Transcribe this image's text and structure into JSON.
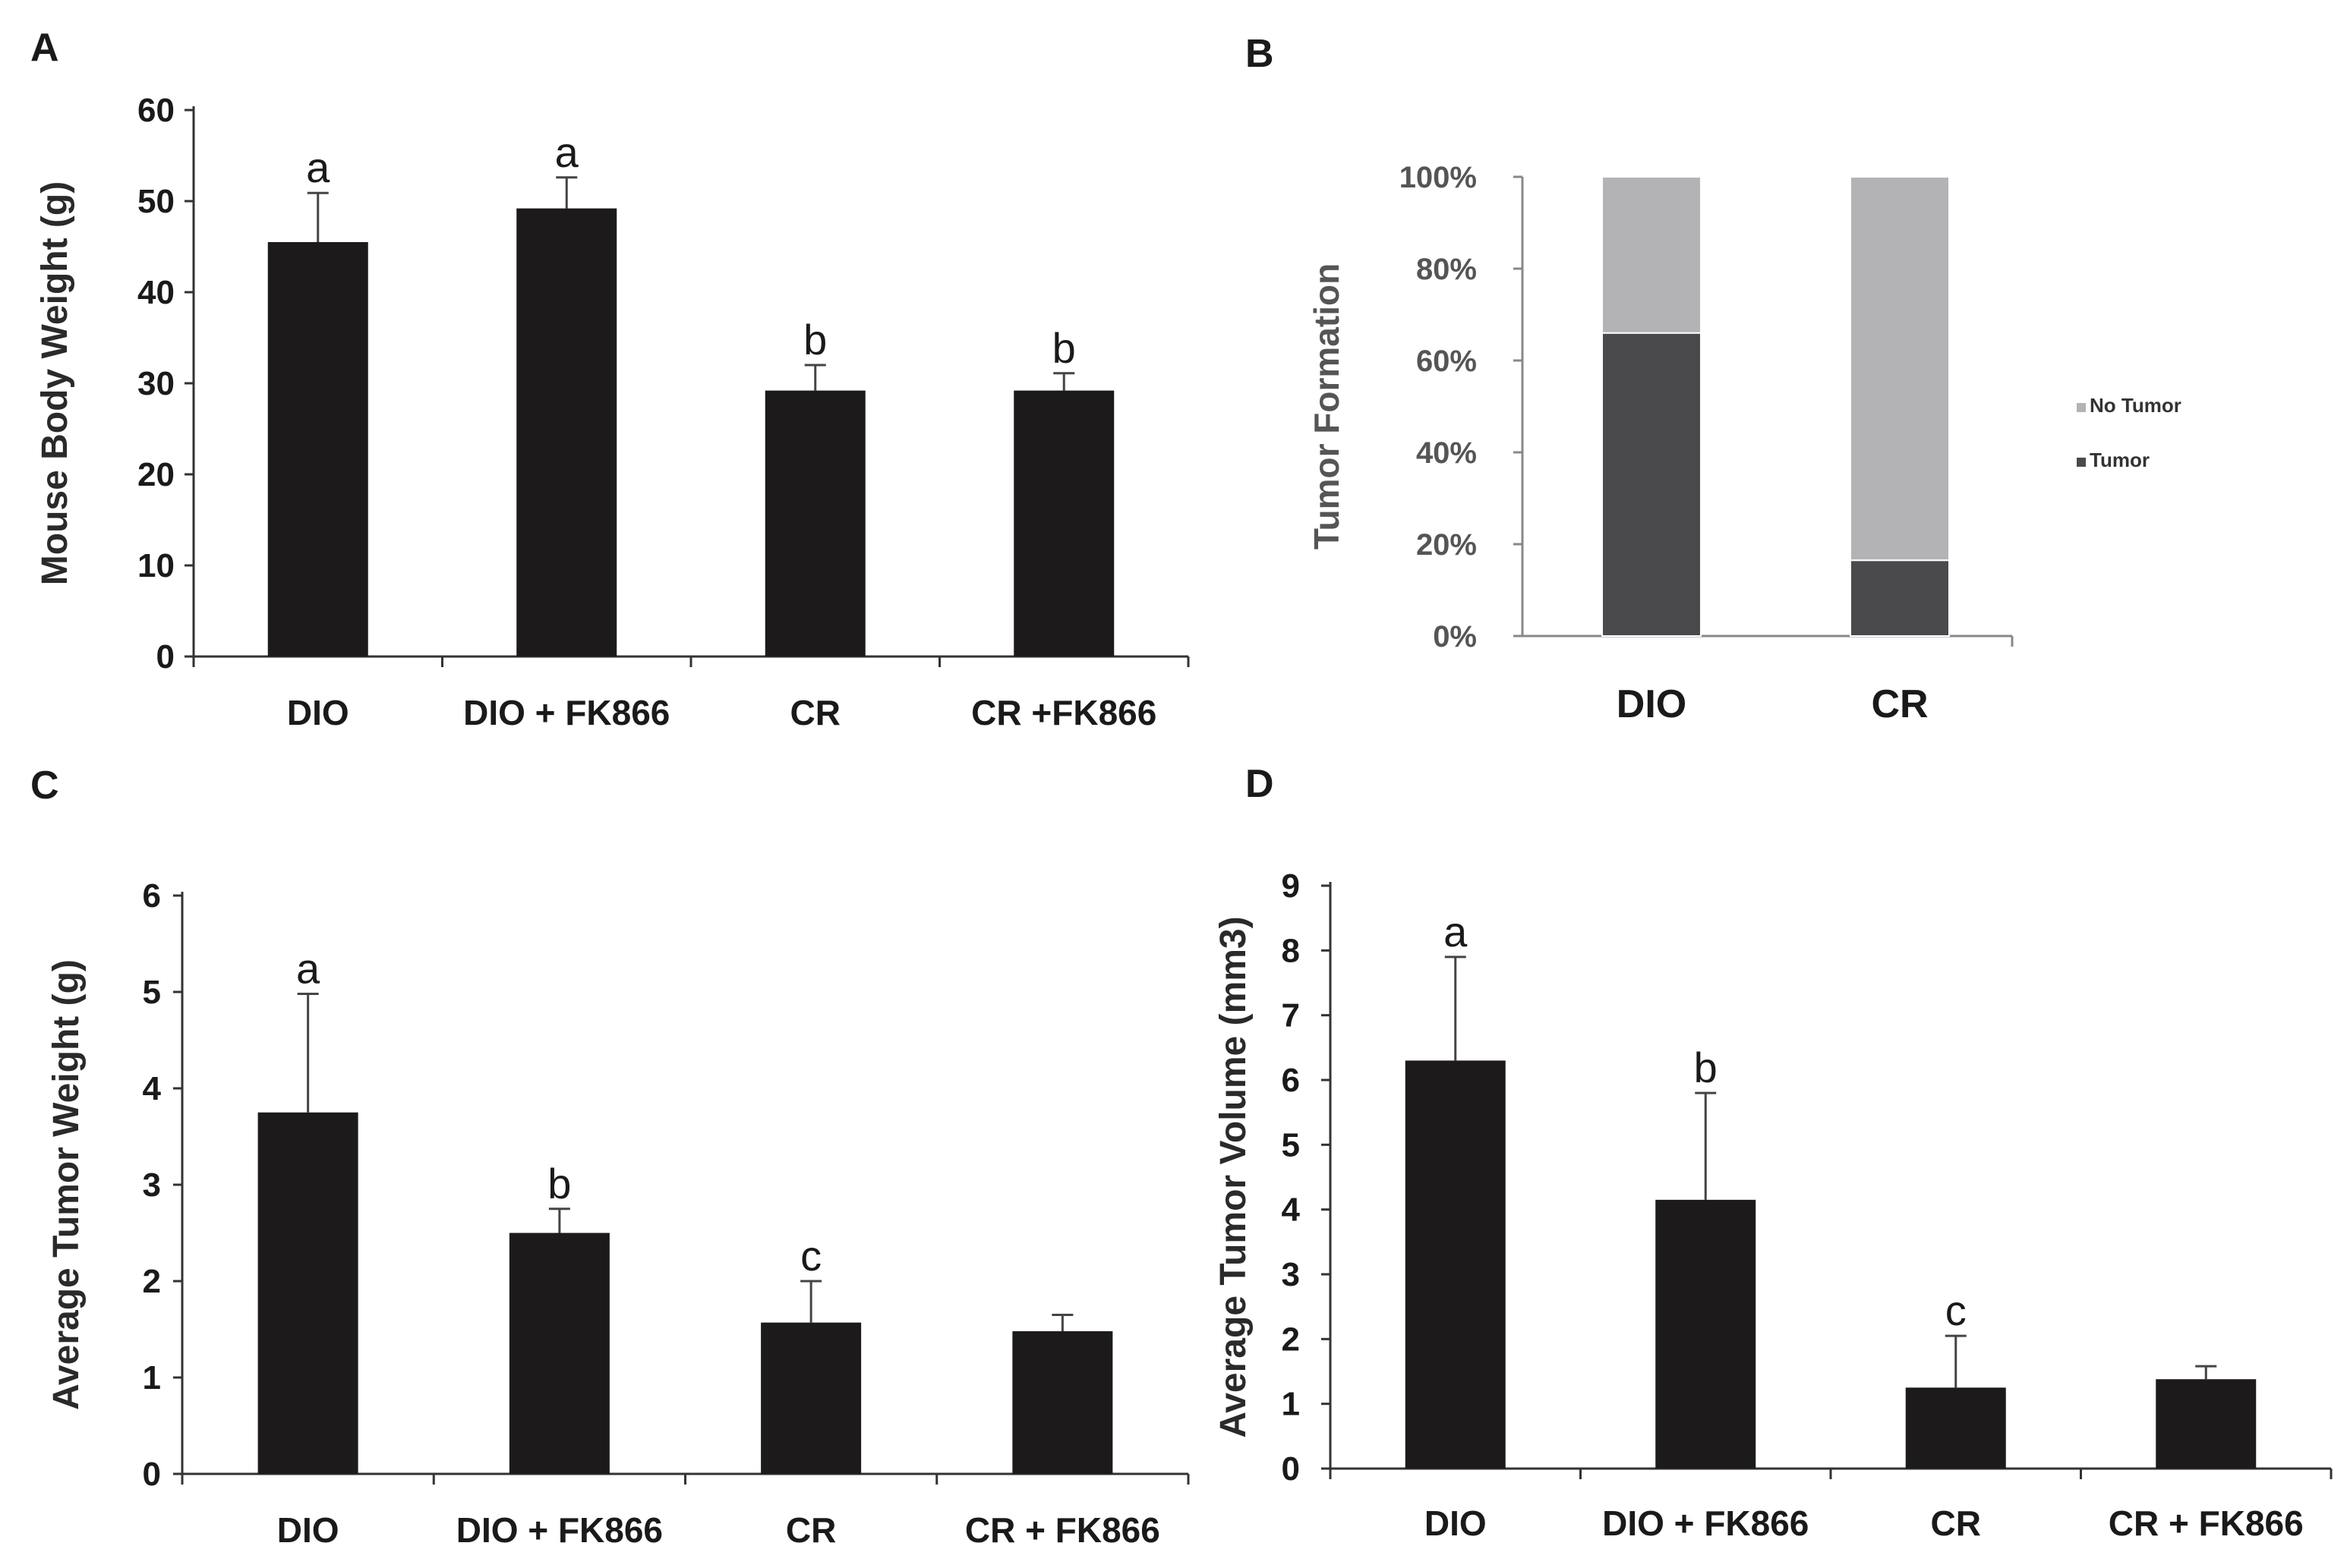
{
  "chart_data": [
    {
      "panel": "A",
      "type": "bar",
      "categories": [
        "DIO",
        "DIO + FK866",
        "CR",
        "CR +FK866"
      ],
      "values": [
        45.5,
        49.2,
        29.2,
        29.2
      ],
      "errors": [
        5.4,
        3.4,
        2.8,
        1.9
      ],
      "significance": [
        "a",
        "a",
        "b",
        "b"
      ],
      "ylabel": "Mouse Body Weight (g)",
      "ylim": [
        0,
        60
      ],
      "yticks": [
        "0",
        "10",
        "20",
        "30",
        "40",
        "50",
        "60"
      ],
      "bar_color": "#1c1a1b"
    },
    {
      "panel": "B",
      "type": "bar",
      "stacked": true,
      "categories": [
        "DIO",
        "CR"
      ],
      "series": [
        {
          "name": "Tumor",
          "values": [
            66,
            16.5
          ],
          "color": "#4a4a4c"
        },
        {
          "name": "No Tumor",
          "values": [
            34,
            83.5
          ],
          "color": "#b3b3b5"
        }
      ],
      "ylabel": "Tumor Formation",
      "ylim": [
        0,
        100
      ],
      "yticks": [
        "0%",
        "20%",
        "40%",
        "60%",
        "80%",
        "100%"
      ],
      "legend": [
        "No Tumor",
        "Tumor"
      ]
    },
    {
      "panel": "C",
      "type": "bar",
      "categories": [
        "DIO",
        "DIO + FK866",
        "CR",
        "CR + FK866"
      ],
      "values": [
        3.75,
        2.5,
        1.57,
        1.48
      ],
      "errors": [
        1.23,
        0.25,
        0.43,
        0.17
      ],
      "significance": [
        "a",
        "b",
        "c",
        ""
      ],
      "ylabel": "Average Tumor Weight (g)",
      "ylim": [
        0,
        6
      ],
      "yticks": [
        "0",
        "1",
        "2",
        "3",
        "4",
        "5",
        "6"
      ],
      "bar_color": "#1c1a1b"
    },
    {
      "panel": "D",
      "type": "bar",
      "categories": [
        "DIO",
        "DIO + FK866",
        "CR",
        "CR + FK866"
      ],
      "values": [
        6.3,
        4.15,
        1.25,
        1.38
      ],
      "errors": [
        1.6,
        1.65,
        0.8,
        0.2
      ],
      "significance": [
        "a",
        "b",
        "c",
        ""
      ],
      "ylabel": "Average Tumor Volume (mm3)",
      "ylim": [
        0,
        9
      ],
      "yticks": [
        "0",
        "1",
        "2",
        "3",
        "4",
        "5",
        "6",
        "7",
        "8",
        "9"
      ],
      "bar_color": "#1c1a1b"
    }
  ]
}
